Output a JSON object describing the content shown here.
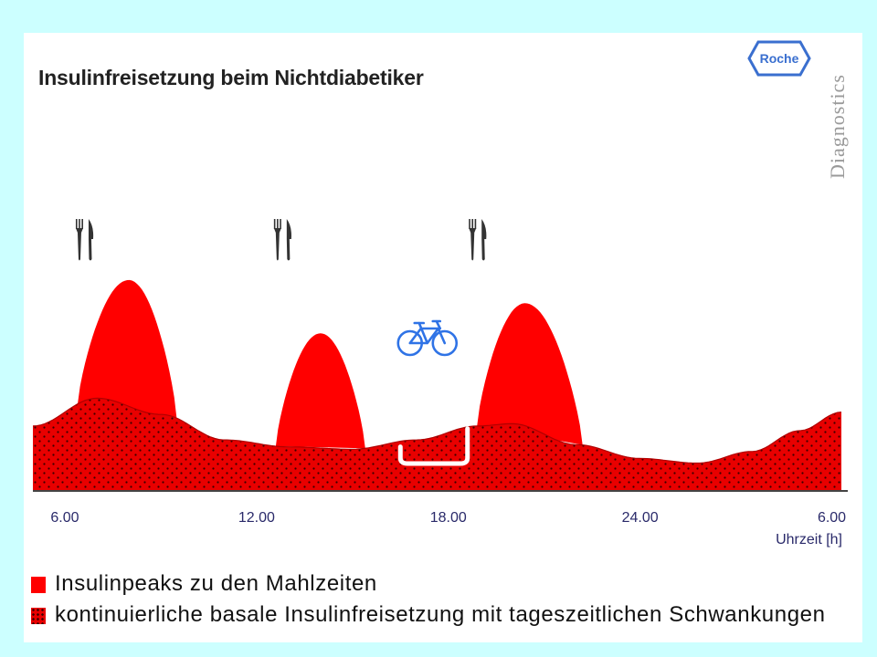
{
  "title": "Insulinfreisetzung beim Nichtdiabetiker",
  "logo_text": "Roche",
  "brand_vertical": "Diagnostics",
  "colors": {
    "background": "#ccffff",
    "peak_red": "#ff0000",
    "basal_red": "#e80000",
    "tick_text": "#2a2a6a",
    "logo_blue": "#3a6fcf",
    "bike_blue": "#2f73e6"
  },
  "icons": {
    "meal": "fork-knife-icon",
    "exercise": "bicycle-icon"
  },
  "chart_data": {
    "type": "area",
    "xlabel": "Uhrzeit [h]",
    "ylabel": "",
    "x_ticks": [
      "6.00",
      "12.00",
      "18.00",
      "24.00",
      "6.00"
    ],
    "x_tick_values": [
      6,
      12,
      18,
      24,
      30
    ],
    "xlim": [
      5,
      30.5
    ],
    "ylim": [
      0,
      1
    ],
    "grid": false,
    "legend_position": "bottom",
    "meal_times": [
      6.6,
      12.8,
      18.9
    ],
    "exercise_time": 17.0,
    "exercise_interval": [
      16.5,
      18.6
    ],
    "series": [
      {
        "name": "Insulinpeaks zu den Mahlzeiten",
        "style": "solid",
        "peaks": [
          {
            "start": 6.4,
            "center": 8.0,
            "end": 9.5,
            "peak": 0.91
          },
          {
            "start": 12.6,
            "center": 14.0,
            "end": 15.4,
            "peak": 0.68
          },
          {
            "start": 18.9,
            "center": 20.4,
            "end": 22.2,
            "peak": 0.81
          }
        ]
      },
      {
        "name": "kontinuierliche basale Insulinfreisetzung mit tageszeitlichen Schwankungen",
        "style": "dotted",
        "x": [
          5.0,
          7.0,
          9.0,
          11.0,
          13.0,
          15.0,
          17.0,
          18.9,
          20.0,
          22.0,
          24.0,
          25.8,
          27.5,
          29.0,
          30.3
        ],
        "y": [
          0.28,
          0.4,
          0.33,
          0.22,
          0.19,
          0.18,
          0.22,
          0.28,
          0.29,
          0.2,
          0.14,
          0.12,
          0.17,
          0.26,
          0.34
        ]
      }
    ]
  },
  "legend": [
    {
      "label": "Insulinpeaks zu den Mahlzeiten",
      "style": "solid"
    },
    {
      "label": "kontinuierliche basale Insulinfreisetzung mit tageszeitlichen Schwankungen",
      "style": "dotted"
    }
  ]
}
